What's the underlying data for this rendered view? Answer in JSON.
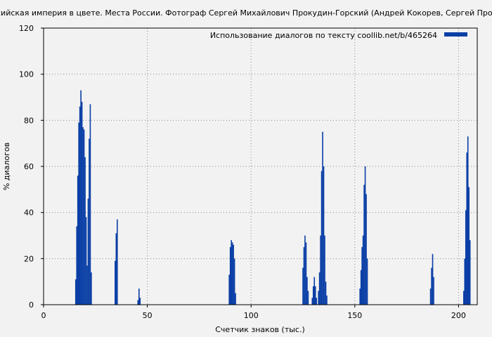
{
  "chart_data": {
    "type": "bar",
    "title": "сийская империя в цвете. Места России. Фотограф Сергей Михайлович Прокудин-Горский (Андрей Кокорев, Сергей Прокудин",
    "xlabel": "Счетчик знаков (тыс.)",
    "ylabel": "% диалогов",
    "xlim": [
      0,
      209
    ],
    "ylim": [
      0,
      120
    ],
    "xticks": [
      0,
      50,
      100,
      150,
      200
    ],
    "yticks": [
      0,
      20,
      40,
      60,
      80,
      100,
      120
    ],
    "grid": true,
    "legend_position": "top-right",
    "color": "#0b3fa6",
    "series": [
      {
        "name": "Использование диалогов по тексту  coollib.net/b/465264",
        "x": [
          15.5,
          16,
          16.5,
          17,
          17.5,
          18,
          18.5,
          19,
          19.5,
          20,
          20.5,
          21,
          21.5,
          22,
          22.5,
          23,
          34.5,
          35,
          35.5,
          45.5,
          46,
          46.5,
          89.5,
          90,
          90.5,
          91,
          91.5,
          92,
          92.5,
          125,
          125.5,
          126,
          126.5,
          127,
          127.5,
          129.5,
          130,
          130.5,
          131,
          131.5,
          132.5,
          133,
          133.5,
          134,
          134.5,
          135,
          135.5,
          136,
          136.5,
          152.5,
          153,
          153.5,
          154,
          154.5,
          155,
          155.5,
          156,
          186.5,
          187,
          187.5,
          188,
          202.5,
          203,
          203.5,
          204,
          204.5,
          205,
          205.5
        ],
        "values": [
          11,
          34,
          56,
          79,
          86,
          93,
          88,
          77,
          76,
          64,
          38,
          17,
          46,
          72,
          87,
          14,
          19,
          31,
          37,
          2,
          7,
          3,
          13,
          25,
          28,
          27,
          26,
          20,
          5,
          16,
          25,
          30,
          27,
          12,
          6,
          3,
          8,
          12,
          8,
          3,
          6,
          14,
          30,
          58,
          75,
          60,
          30,
          10,
          4,
          7,
          15,
          25,
          30,
          52,
          60,
          48,
          20,
          7,
          16,
          22,
          12,
          6,
          20,
          41,
          66,
          73,
          51,
          28
        ]
      }
    ]
  }
}
